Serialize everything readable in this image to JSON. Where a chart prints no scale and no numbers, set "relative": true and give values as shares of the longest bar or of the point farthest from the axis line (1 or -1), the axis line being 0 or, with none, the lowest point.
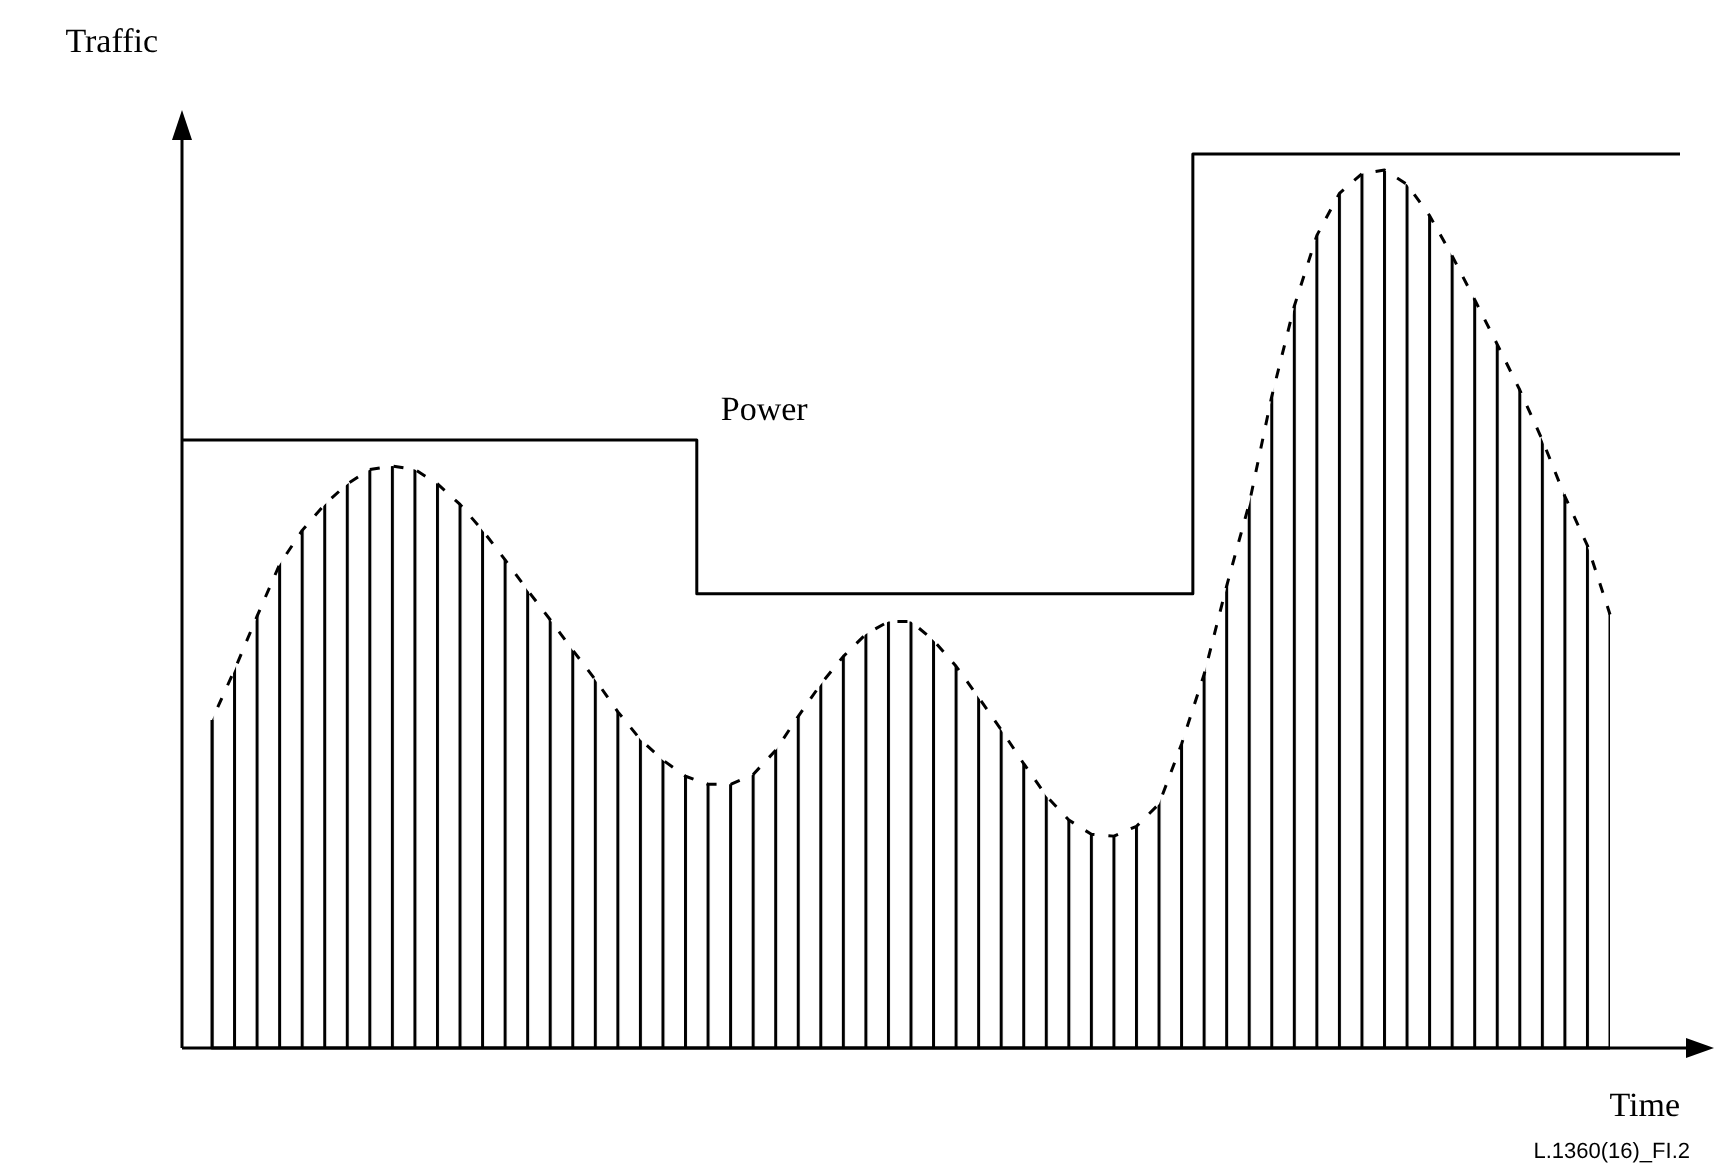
{
  "chart_data": {
    "type": "area",
    "relative": true,
    "xlabel": "Time",
    "ylabel": "Traffic",
    "annotations": [
      "L.1360(16)_FI.2"
    ],
    "categories": [
      null,
      null,
      null,
      null,
      null,
      null,
      null,
      null,
      null,
      null,
      null,
      null,
      null,
      null,
      null,
      null,
      null,
      null,
      null,
      null,
      null,
      null,
      null,
      null,
      null,
      null,
      null,
      null,
      null,
      null,
      null,
      null,
      null,
      null,
      null,
      null,
      null,
      null,
      null,
      null,
      null,
      null,
      null,
      null,
      null,
      null,
      null,
      null,
      null,
      null,
      null,
      null,
      null,
      null,
      null,
      null,
      null,
      null,
      null,
      null,
      null,
      null,
      null
    ],
    "series": [
      {
        "color": "#000000",
        "line_style": "dashed",
        "values": [
          0.367,
          0.423,
          0.483,
          0.541,
          0.579,
          0.608,
          0.631,
          0.647,
          0.651,
          0.647,
          0.631,
          0.608,
          0.579,
          0.546,
          0.512,
          0.479,
          0.445,
          0.412,
          0.376,
          0.345,
          0.322,
          0.304,
          0.295,
          0.295,
          0.306,
          0.333,
          0.371,
          0.407,
          0.438,
          0.463,
          0.477,
          0.477,
          0.456,
          0.427,
          0.392,
          0.356,
          0.318,
          0.282,
          0.255,
          0.239,
          0.237,
          0.248,
          0.273,
          0.34,
          0.418,
          0.517,
          0.609,
          0.729,
          0.83,
          0.909,
          0.956,
          0.978,
          0.982,
          0.966,
          0.931,
          0.886,
          0.837,
          0.787,
          0.736,
          0.68,
          0.617,
          0.562,
          0.485
        ]
      },
      {
        "type": "step",
        "name": "Power",
        "color": "#000000",
        "line_style": "solid",
        "values": [
          0.68,
          0.68,
          0.68,
          0.68,
          0.68,
          0.68,
          0.68,
          0.68,
          0.68,
          0.68,
          0.68,
          0.68,
          0.68,
          0.68,
          0.68,
          0.68,
          0.68,
          0.68,
          0.68,
          0.68,
          0.68,
          0.68,
          0.508,
          0.508,
          0.508,
          0.508,
          0.508,
          0.508,
          0.508,
          0.508,
          0.508,
          0.508,
          0.508,
          0.508,
          0.508,
          0.508,
          0.508,
          0.508,
          0.508,
          0.508,
          0.508,
          0.508,
          0.508,
          0.508,
          1,
          1,
          1,
          1,
          1,
          1,
          1,
          1,
          1,
          1,
          1,
          1,
          1,
          1,
          1,
          1,
          1,
          1,
          1
        ]
      }
    ]
  }
}
